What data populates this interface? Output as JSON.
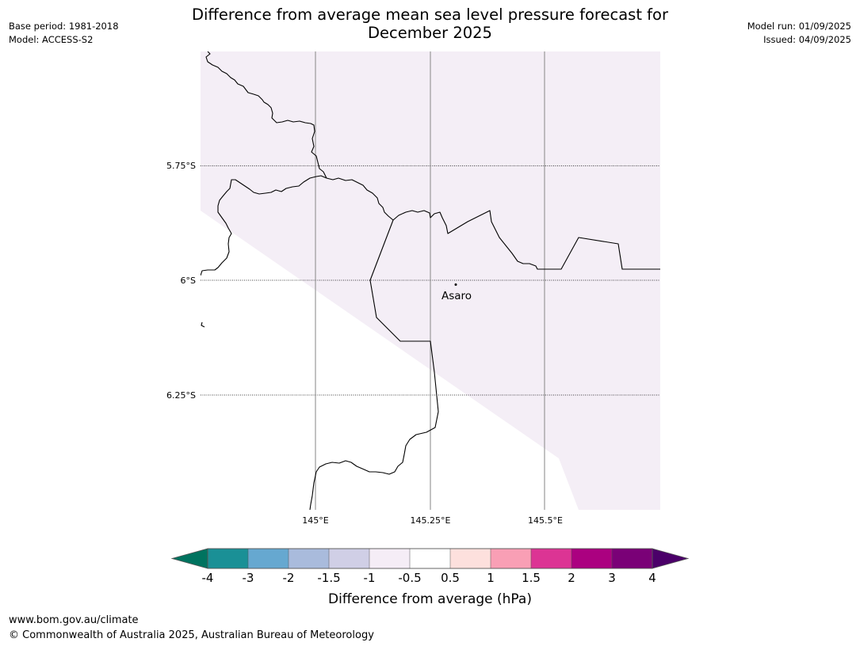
{
  "header": {
    "title_line1": "Difference from average mean sea level pressure forecast for",
    "title_line2": "December 2025",
    "base_period": "Base period: 1981-2018",
    "model": "Model: ACCESS-S2",
    "model_run": "Model run: 01/09/2025",
    "issued": "Issued: 04/09/2025"
  },
  "map": {
    "lat_labels": [
      "5.75°S",
      "6°S",
      "6.25°S"
    ],
    "lon_labels": [
      "145°E",
      "145.25°E",
      "145.5°E"
    ],
    "place": {
      "name": "Asaro",
      "lat": -6.01,
      "lon": 145.3
    },
    "anomaly_fill_color": "#f4eef6"
  },
  "colorbar": {
    "title": "Difference from average (hPa)",
    "tick_labels": [
      "-4",
      "-3",
      "-2",
      "-1.5",
      "-1",
      "-0.5",
      "0.5",
      "1",
      "1.5",
      "2",
      "3",
      "4"
    ],
    "under_color": "#00735f",
    "over_color": "#4b0069",
    "colors": [
      "#1a9096",
      "#66a8d0",
      "#a9bbdc",
      "#d0cfe6",
      "#f5edf6",
      "#ffffff",
      "#fde0dd",
      "#f99fb5",
      "#dc3494",
      "#ab0180",
      "#7a0177"
    ]
  },
  "footer": {
    "url": "www.bom.gov.au/climate",
    "copyright": "© Commonwealth of Australia 2025, Australian Bureau of Meteorology"
  }
}
